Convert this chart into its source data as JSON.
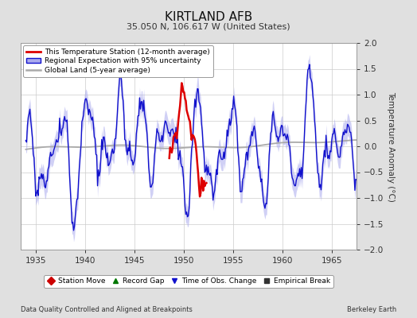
{
  "title": "KIRTLAND AFB",
  "subtitle": "35.050 N, 106.617 W (United States)",
  "ylabel": "Temperature Anomaly (°C)",
  "footer_left": "Data Quality Controlled and Aligned at Breakpoints",
  "footer_right": "Berkeley Earth",
  "xlim": [
    1933.5,
    1967.5
  ],
  "ylim": [
    -2.0,
    2.0
  ],
  "xticks": [
    1935,
    1940,
    1945,
    1950,
    1955,
    1960,
    1965
  ],
  "yticks": [
    -2.0,
    -1.5,
    -1.0,
    -0.5,
    0.0,
    0.5,
    1.0,
    1.5,
    2.0
  ],
  "bg_color": "#e0e0e0",
  "plot_bg_color": "#ffffff",
  "grid_color": "#cccccc",
  "red_color": "#dd0000",
  "blue_color": "#1111cc",
  "blue_fill_color": "#aaaaee",
  "gray_color": "#aaaaaa",
  "title_fontsize": 11,
  "subtitle_fontsize": 8,
  "legend_fontsize": 6.5,
  "tick_fontsize": 7.5,
  "ylabel_fontsize": 7.5
}
